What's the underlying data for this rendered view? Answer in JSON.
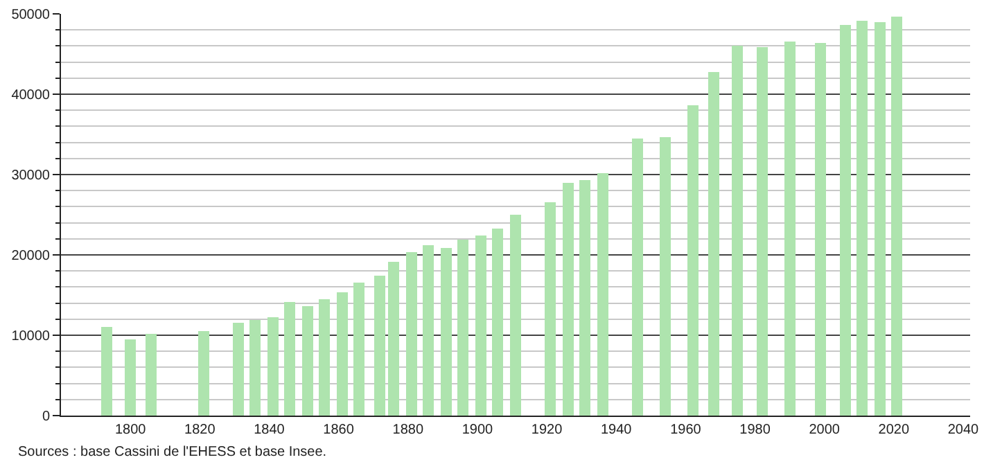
{
  "chart_data": {
    "type": "bar",
    "x": [
      1793,
      1800,
      1806,
      1821,
      1831,
      1836,
      1841,
      1846,
      1851,
      1856,
      1861,
      1866,
      1872,
      1876,
      1881,
      1886,
      1891,
      1896,
      1901,
      1906,
      1911,
      1921,
      1926,
      1931,
      1936,
      1946,
      1954,
      1962,
      1968,
      1975,
      1982,
      1990,
      1999,
      2006,
      2011,
      2016,
      2021
    ],
    "values": [
      11100,
      9500,
      10100,
      10500,
      11600,
      11900,
      12300,
      14200,
      13600,
      14500,
      15400,
      16600,
      17400,
      19200,
      20400,
      21200,
      20900,
      21900,
      22400,
      23300,
      25000,
      26600,
      29000,
      29300,
      30200,
      34400,
      34700,
      38700,
      42800,
      46000,
      45900,
      46600,
      46300,
      48700,
      49200,
      49000,
      49700
    ],
    "color": "#aee4ae",
    "xlim": [
      1780,
      2042
    ],
    "xticks": [
      1800,
      1820,
      1840,
      1860,
      1880,
      1900,
      1920,
      1940,
      1960,
      1980,
      2000,
      2020,
      2040
    ],
    "ylim": [
      0,
      50000
    ],
    "yticks": [
      0,
      {
        "value": 2000,
        "label": null
      },
      {
        "value": 4000,
        "label": null
      },
      {
        "value": 6000,
        "label": null
      },
      {
        "value": 8000,
        "label": null
      },
      10000,
      {
        "value": 12000,
        "label": null
      },
      {
        "value": 14000,
        "label": null
      },
      {
        "value": 16000,
        "label": null
      },
      {
        "value": 18000,
        "label": null
      },
      20000,
      {
        "value": 22000,
        "label": null
      },
      {
        "value": 24000,
        "label": null
      },
      {
        "value": 26000,
        "label": null
      },
      {
        "value": 28000,
        "label": null
      },
      30000,
      {
        "value": 32000,
        "label": null
      },
      {
        "value": 34000,
        "label": null
      },
      {
        "value": 36000,
        "label": null
      },
      {
        "value": 38000,
        "label": null
      },
      40000,
      {
        "value": 42000,
        "label": null
      },
      {
        "value": 44000,
        "label": null
      },
      {
        "value": 46000,
        "label": null
      },
      {
        "value": 48000,
        "label": null
      },
      50000
    ],
    "grid": "y",
    "annotations": [
      "Sources : base Cassini de l'EHESS et base Insee."
    ]
  }
}
